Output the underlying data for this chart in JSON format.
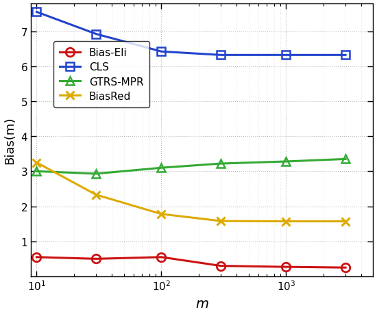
{
  "x": [
    10,
    30,
    100,
    300,
    1000,
    3000
  ],
  "bias_eli": [
    0.55,
    0.5,
    0.55,
    0.3,
    0.27,
    0.25
  ],
  "cls": [
    7.55,
    6.92,
    6.42,
    6.32,
    6.32,
    6.32
  ],
  "gtrs_mpr": [
    3.0,
    2.93,
    3.1,
    3.22,
    3.28,
    3.35
  ],
  "biasred": [
    3.25,
    2.33,
    1.78,
    1.58,
    1.57,
    1.57
  ],
  "colors": {
    "bias_eli": "#CC1111",
    "cls": "#2244CC",
    "gtrs_mpr": "#33AA33",
    "biasred": "#DDAA00"
  },
  "markers": {
    "bias_eli": "o",
    "cls": "s",
    "gtrs_mpr": "^",
    "biasred": "x"
  },
  "labels": {
    "bias_eli": "Bias-Eli",
    "cls": "CLS",
    "gtrs_mpr": "GTRS-MPR",
    "biasred": "BiasRed"
  },
  "ylabel": "Bias(m)",
  "xlabel": "$m$",
  "ylim": [
    0,
    7.8
  ],
  "yticks": [
    1,
    2,
    3,
    4,
    5,
    6,
    7
  ],
  "xlim_log": [
    9,
    5000
  ],
  "linewidth": 2.2,
  "markersize": 9
}
